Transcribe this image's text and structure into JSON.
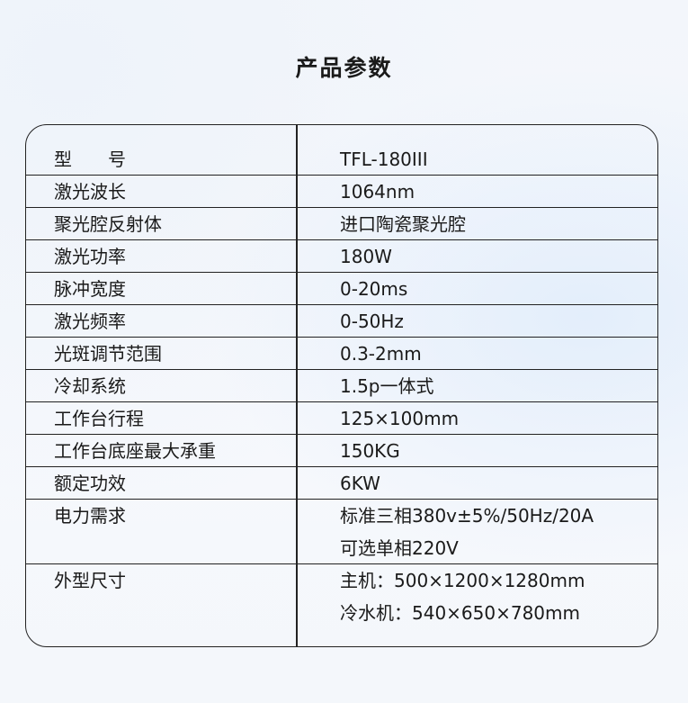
{
  "title": "产品参数",
  "rows": [
    {
      "label": "型　　号",
      "values": [
        "TFL-180III"
      ]
    },
    {
      "label": "激光波长",
      "values": [
        "1064nm"
      ]
    },
    {
      "label": "聚光腔反射体",
      "values": [
        "进口陶瓷聚光腔"
      ]
    },
    {
      "label": "激光功率",
      "values": [
        "180W"
      ]
    },
    {
      "label": "脉冲宽度",
      "values": [
        "0-20ms"
      ]
    },
    {
      "label": "激光频率",
      "values": [
        "0-50Hz"
      ]
    },
    {
      "label": "光斑调节范围",
      "values": [
        "0.3-2mm"
      ]
    },
    {
      "label": "冷却系统",
      "values": [
        "1.5p一体式"
      ]
    },
    {
      "label": "工作台行程",
      "values": [
        "125×100mm"
      ]
    },
    {
      "label": "工作台底座最大承重",
      "values": [
        "150KG"
      ]
    },
    {
      "label": "额定功效",
      "values": [
        "6KW"
      ]
    },
    {
      "label": "电力需求",
      "values": [
        "标准三相380v±5%/50Hz/20A",
        "可选单相220V"
      ]
    },
    {
      "label": "外型尺寸",
      "values": [
        "主机：500×1200×1280mm",
        "冷水机：540×650×780mm"
      ]
    }
  ]
}
